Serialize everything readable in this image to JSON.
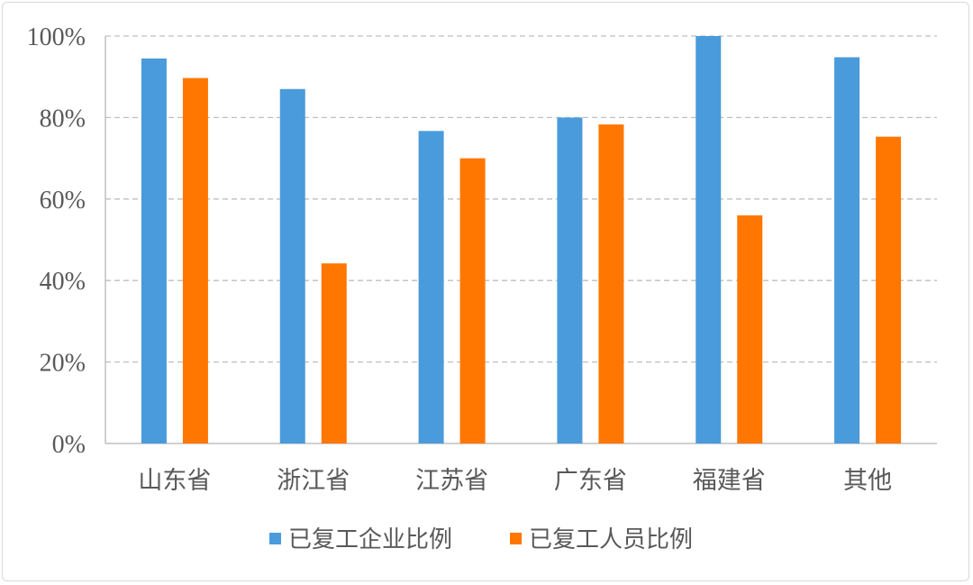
{
  "chart_data": {
    "type": "bar",
    "categories": [
      "山东省",
      "浙江省",
      "江苏省",
      "广东省",
      "福建省",
      "其他"
    ],
    "series": [
      {
        "name": "已复工企业比例",
        "color": "#4A9BDB",
        "values": [
          94.5,
          87,
          76.7,
          80,
          100,
          94.8
        ]
      },
      {
        "name": "已复工人员比例",
        "color": "#FF7700",
        "values": [
          89.7,
          44.2,
          70,
          78.3,
          56,
          75.3
        ]
      }
    ],
    "ylim": [
      0,
      100
    ],
    "yticks": [
      "0%",
      "20%",
      "40%",
      "60%",
      "80%",
      "100%"
    ],
    "grid": true,
    "legend": "bottom"
  }
}
